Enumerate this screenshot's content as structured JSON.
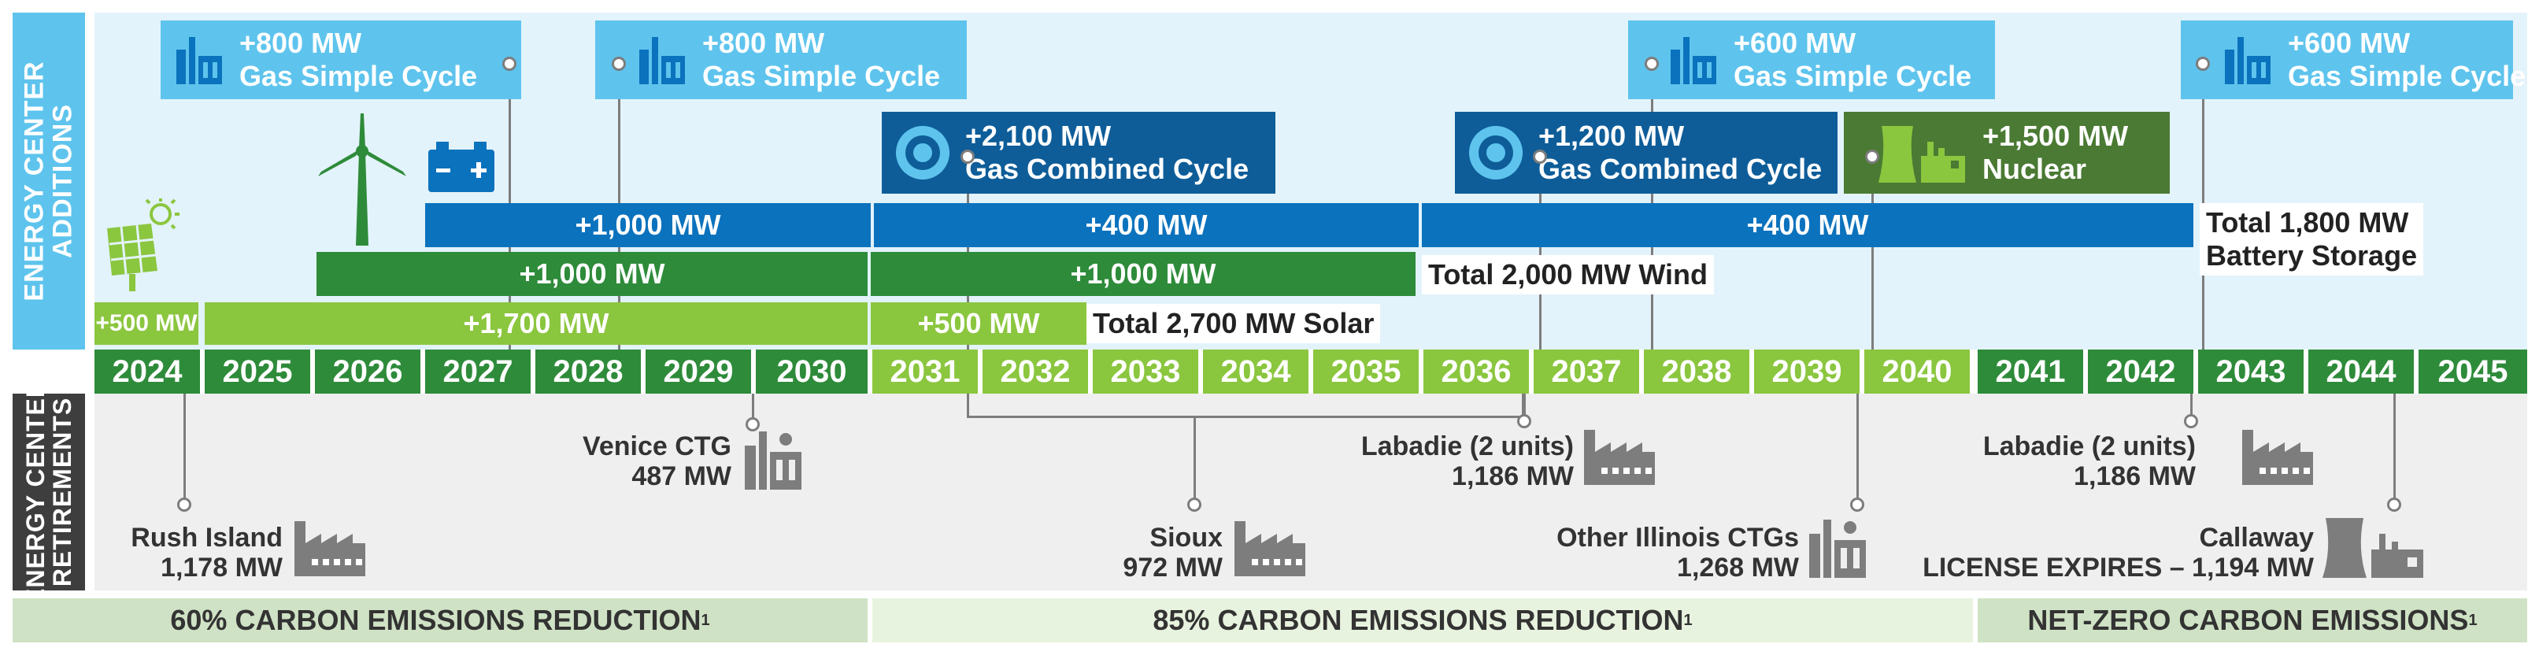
{
  "sidebar": {
    "additions": "ENERGY CENTER\nADDITIONS",
    "retirements": "ENERGY CENTER\nRETIREMENTS"
  },
  "years": [
    "2024",
    "2025",
    "2026",
    "2027",
    "2028",
    "2029",
    "2030",
    "2031",
    "2032",
    "2033",
    "2034",
    "2035",
    "2036",
    "2037",
    "2038",
    "2039",
    "2040",
    "2041",
    "2042",
    "2043",
    "2044",
    "2045"
  ],
  "gas_simple": [
    {
      "mw": "+800 MW",
      "label": "Gas Simple Cycle"
    },
    {
      "mw": "+800 MW",
      "label": "Gas Simple Cycle"
    },
    {
      "mw": "+600 MW",
      "label": "Gas Simple Cycle"
    },
    {
      "mw": "+600 MW",
      "label": "Gas Simple Cycle"
    }
  ],
  "gas_combined": [
    {
      "mw": "+2,100 MW",
      "label": "Gas Combined Cycle"
    },
    {
      "mw": "+1,200 MW",
      "label": "Gas Combined Cycle"
    }
  ],
  "nuclear": {
    "mw": "+1,500 MW",
    "label": "Nuclear"
  },
  "storage_bars": [
    "+1,000 MW",
    "+400 MW",
    "+400 MW"
  ],
  "storage_total": "Total 1,800 MW\nBattery Storage",
  "wind_bars": [
    "+1,000 MW",
    "+1,000 MW"
  ],
  "wind_total": "Total 2,000 MW Wind",
  "solar_bars": [
    "+500 MW",
    "+1,700 MW",
    "+500 MW"
  ],
  "solar_total": "Total 2,700 MW Solar",
  "retirements": [
    {
      "name": "Rush Island",
      "mw": "1,178 MW"
    },
    {
      "name": "Venice CTG",
      "mw": "487 MW"
    },
    {
      "name": "Sioux",
      "mw": "972 MW"
    },
    {
      "name": "Labadie (2 units)",
      "mw": "1,186 MW"
    },
    {
      "name": "Other Illinois CTGs",
      "mw": "1,268 MW"
    },
    {
      "name": "Labadie (2 units)",
      "mw": "1,186 MW"
    },
    {
      "name": "Callaway",
      "mw": "LICENSE EXPIRES – 1,194 MW"
    }
  ],
  "bands": [
    {
      "label": "60% CARBON EMISSIONS REDUCTION",
      "note": "1"
    },
    {
      "label": "85% CARBON EMISSIONS REDUCTION",
      "note": "1"
    },
    {
      "label": "NET-ZERO CARBON EMISSIONS",
      "note": "1"
    }
  ],
  "colors": {
    "sidebar_blue": "#5ec4ed",
    "sidebar_dark": "#3e3e3e",
    "gas_simple": "#5ec4ed",
    "gas_combined": "#0e5d99",
    "storage": "#0b72bd",
    "wind": "#2e8b3a",
    "solar_light": "#8bc63f",
    "solar_mid": "#6ab23f",
    "nuclear": "#4a7a33",
    "year_dark": "#2e8b3a",
    "year_light": "#8bc63f",
    "band1": "#cfe2c5",
    "band2": "#e8f3df",
    "band3": "#cfe2c5"
  }
}
